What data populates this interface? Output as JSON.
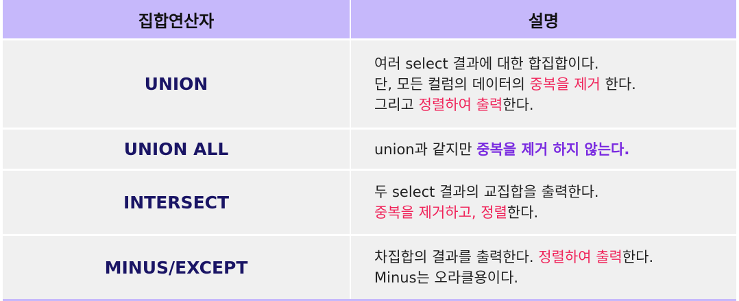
{
  "header": {
    "col1": "집합연산자",
    "col2": "설명"
  },
  "colors": {
    "header_bg": "#c6b8fb",
    "row_bg": "#f0f0f0",
    "operator_text": "#1a1565",
    "highlight_red": "#f0245a",
    "highlight_purple": "#7a2be0"
  },
  "rows": [
    {
      "operator": "UNION",
      "lines": [
        {
          "a": "여러 select 결과에 대한 합집합이다."
        },
        {
          "a": "단, 모든 컬럼의 데이터의 ",
          "hl": "중복을 제거",
          "b": " 한다."
        },
        {
          "a": "그리고 ",
          "hl": "정렬하여 출력",
          "b": "한다."
        }
      ]
    },
    {
      "operator": "UNION ALL",
      "lines": [
        {
          "a": "union과 같지만 ",
          "hl": "중복을 제거 하지 않는다."
        }
      ]
    },
    {
      "operator": "INTERSECT",
      "lines": [
        {
          "a": "두 select 결과의 교집합을 출력한다."
        },
        {
          "hl": "중복을 제거하고, 정렬",
          "b": "한다."
        }
      ]
    },
    {
      "operator": "MINUS/EXCEPT",
      "lines": [
        {
          "a": "차집합의 결과를 출력한다. ",
          "hl": "정렬하여 출력",
          "b": "한다."
        },
        {
          "a": "Minus는 오라클용이다."
        }
      ]
    }
  ]
}
